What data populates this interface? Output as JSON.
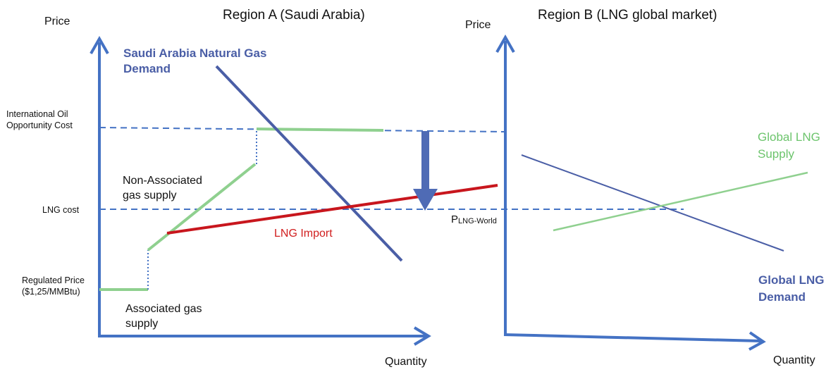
{
  "colors": {
    "axis": "#4472c4",
    "demand": "#4a5ea6",
    "supply": "#8fd08f",
    "lng_import": "#c8161d",
    "dashed": "#4472c4",
    "arrow": "#4f6bb5"
  },
  "region_a": {
    "title": "Region A (Saudi Arabia)",
    "y_axis_label": "Price",
    "x_axis_label": "Quantity",
    "y_levels": {
      "oil_opportunity_cost": "International Oil Opportunity Cost",
      "lng_cost": "LNG cost",
      "regulated_price": "Regulated Price ($1,25/MMBtu)"
    },
    "demand_label": "Saudi Arabia Natural Gas Demand",
    "non_associated_label": "Non-Associated gas supply",
    "associated_label": "Associated gas supply",
    "lng_import_label": "LNG Import"
  },
  "region_b": {
    "title": "Region B (LNG global market)",
    "y_axis_label": "Price",
    "x_axis_label": "Quantity",
    "supply_label": "Global LNG Supply",
    "demand_label": "Global LNG Demand"
  },
  "p_lng_world": {
    "main": "P",
    "sub": "LNG-World"
  }
}
